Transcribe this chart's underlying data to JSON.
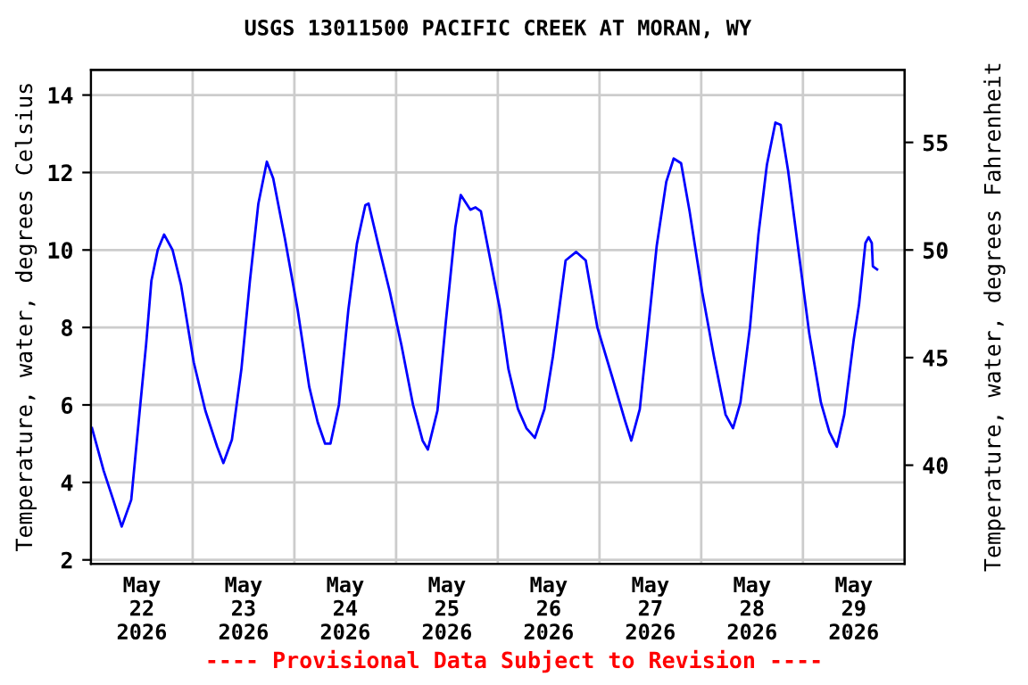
{
  "chart_data": {
    "type": "line",
    "title": "USGS 13011500 PACIFIC CREEK AT MORAN, WY",
    "ylabel": "Temperature, water, degrees Celsius",
    "y2label": "Temperature, water, degrees Fahrenheit",
    "annotations": [
      "---- Provisional Data Subject to Revision ----"
    ],
    "x": [
      "2026-05-22T00:15",
      "2026-05-22T03:00",
      "2026-05-22T05:15",
      "2026-05-22T07:15",
      "2026-05-22T09:30",
      "2026-05-22T11:30",
      "2026-05-22T13:00",
      "2026-05-22T14:15",
      "2026-05-22T15:45",
      "2026-05-22T17:15",
      "2026-05-22T19:15",
      "2026-05-22T21:15",
      "2026-05-23T00:15",
      "2026-05-23T03:00",
      "2026-05-23T05:45",
      "2026-05-23T07:15",
      "2026-05-23T09:15",
      "2026-05-23T11:30",
      "2026-05-23T13:30",
      "2026-05-23T15:30",
      "2026-05-23T17:30",
      "2026-05-23T19:00",
      "2026-05-23T21:45",
      "2026-05-24T00:45",
      "2026-05-24T03:30",
      "2026-05-24T05:30",
      "2026-05-24T07:15",
      "2026-05-24T08:30",
      "2026-05-24T10:30",
      "2026-05-24T12:45",
      "2026-05-24T14:45",
      "2026-05-24T16:45",
      "2026-05-24T17:30",
      "2026-05-24T19:45",
      "2026-05-24T22:30",
      "2026-05-25T01:15",
      "2026-05-25T04:00",
      "2026-05-25T06:15",
      "2026-05-25T07:30",
      "2026-05-25T09:45",
      "2026-05-25T11:45",
      "2026-05-25T14:00",
      "2026-05-25T15:15",
      "2026-05-25T17:30",
      "2026-05-25T18:45",
      "2026-05-25T20:00",
      "2026-05-25T21:30",
      "2026-05-26T00:30",
      "2026-05-26T02:30",
      "2026-05-26T04:45",
      "2026-05-26T06:45",
      "2026-05-26T08:45",
      "2026-05-26T11:00",
      "2026-05-26T13:00",
      "2026-05-26T16:00",
      "2026-05-26T18:30",
      "2026-05-26T20:45",
      "2026-05-26T23:30",
      "2026-05-27T03:00",
      "2026-05-27T06:00",
      "2026-05-27T07:30",
      "2026-05-27T09:30",
      "2026-05-27T11:30",
      "2026-05-27T13:30",
      "2026-05-27T15:45",
      "2026-05-27T17:30",
      "2026-05-27T19:15",
      "2026-05-27T21:15",
      "2026-05-28T00:15",
      "2026-05-28T03:00",
      "2026-05-28T05:45",
      "2026-05-28T07:30",
      "2026-05-28T09:15",
      "2026-05-28T11:30",
      "2026-05-28T13:30",
      "2026-05-28T15:30",
      "2026-05-28T17:30",
      "2026-05-28T18:45",
      "2026-05-28T20:30",
      "2026-05-28T23:15",
      "2026-05-29T01:30",
      "2026-05-29T04:15",
      "2026-05-29T06:15",
      "2026-05-29T08:00",
      "2026-05-29T09:45",
      "2026-05-29T12:00",
      "2026-05-29T13:15",
      "2026-05-29T14:45",
      "2026-05-29T15:30",
      "2026-05-29T16:15",
      "2026-05-29T16:30",
      "2026-05-29T17:30"
    ],
    "series": [
      {
        "color": "#0000ff",
        "values": [
          5.4,
          4.3,
          3.55,
          2.86,
          3.55,
          5.85,
          7.55,
          9.2,
          10.0,
          10.4,
          10.0,
          9.1,
          7.1,
          5.85,
          4.93,
          4.5,
          5.1,
          6.93,
          9.2,
          11.2,
          12.28,
          11.85,
          10.3,
          8.47,
          6.47,
          5.55,
          5.0,
          5.0,
          6.0,
          8.47,
          10.16,
          11.16,
          11.2,
          10.16,
          8.93,
          7.55,
          6.0,
          5.08,
          4.85,
          5.85,
          8.16,
          10.6,
          11.42,
          11.04,
          11.1,
          11.0,
          10.16,
          8.47,
          6.93,
          5.9,
          5.4,
          5.15,
          5.89,
          7.25,
          9.73,
          9.95,
          9.73,
          8.0,
          6.72,
          5.6,
          5.08,
          5.89,
          8.0,
          10.11,
          11.76,
          12.36,
          12.24,
          11.0,
          8.9,
          7.25,
          5.75,
          5.4,
          6.06,
          8.0,
          10.4,
          12.2,
          13.29,
          13.23,
          12.05,
          9.73,
          7.84,
          6.06,
          5.3,
          4.92,
          5.75,
          7.7,
          8.6,
          10.18,
          10.33,
          10.18,
          9.58,
          9.5
        ]
      }
    ],
    "xlim": [
      "2026-05-22T00:00",
      "2026-05-30T00:00"
    ],
    "xticks": [
      {
        "value": "2026-05-22T12:00",
        "label": "May\n22\n2026"
      },
      {
        "value": "2026-05-23T00:00",
        "label": null
      },
      {
        "value": "2026-05-23T12:00",
        "label": "May\n23\n2026"
      },
      {
        "value": "2026-05-24T00:00",
        "label": null
      },
      {
        "value": "2026-05-24T12:00",
        "label": "May\n24\n2026"
      },
      {
        "value": "2026-05-25T00:00",
        "label": null
      },
      {
        "value": "2026-05-25T12:00",
        "label": "May\n25\n2026"
      },
      {
        "value": "2026-05-26T00:00",
        "label": null
      },
      {
        "value": "2026-05-26T12:00",
        "label": "May\n26\n2026"
      },
      {
        "value": "2026-05-27T00:00",
        "label": null
      },
      {
        "value": "2026-05-27T12:00",
        "label": "May\n27\n2026"
      },
      {
        "value": "2026-05-28T00:00",
        "label": null
      },
      {
        "value": "2026-05-28T12:00",
        "label": "May\n28\n2026"
      },
      {
        "value": "2026-05-29T00:00",
        "label": null
      },
      {
        "value": "2026-05-29T12:00",
        "label": "May\n29\n2026"
      }
    ],
    "ylim": [
      1.9,
      14.65
    ],
    "yticks": [
      2,
      4,
      6,
      8,
      10,
      12,
      14
    ],
    "y2lim": [
      35.42,
      58.37
    ],
    "y2ticks": [
      40,
      45,
      50,
      55
    ],
    "grid": true,
    "marker": "none",
    "line_style": "solid"
  }
}
